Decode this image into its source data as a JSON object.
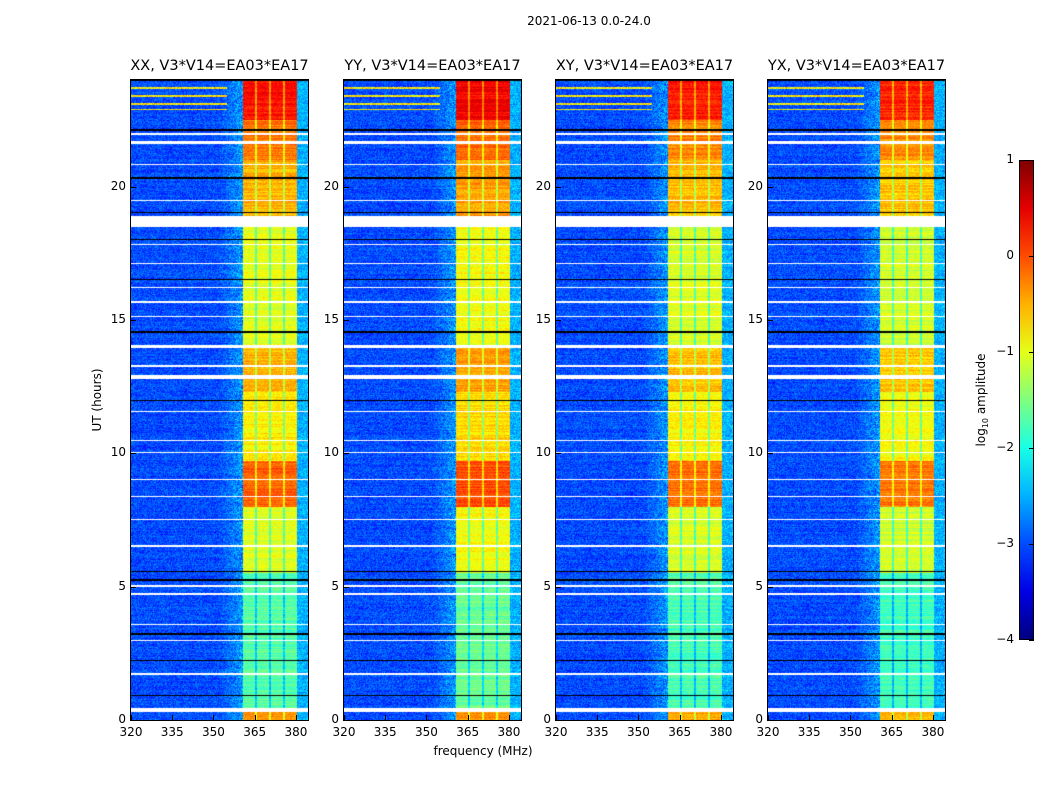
{
  "chart_data": {
    "type": "heatmap",
    "title": "2021-06-13 0.0-24.0",
    "xlabel": "frequency (MHz)",
    "ylabel": "UT (hours)",
    "xlim": [
      320,
      384.4
    ],
    "ylim": [
      0,
      24
    ],
    "xticks": [
      320,
      335,
      350,
      365,
      380
    ],
    "yticks": [
      0,
      5,
      10,
      15,
      20
    ],
    "colormap": "jet",
    "panels": [
      {
        "title": "XX, V3*V14=EA03*EA17",
        "level_offset": 0.0
      },
      {
        "title": "YY, V3*V14=EA03*EA17",
        "level_offset": 0.1
      },
      {
        "title": "XY, V3*V14=EA03*EA17",
        "level_offset": -0.05
      },
      {
        "title": "YX, V3*V14=EA03*EA17",
        "level_offset": -0.1
      }
    ],
    "colorbar": {
      "label_log": "log",
      "label_sub": "10",
      "label_rest": " amplitude",
      "range": [
        -4,
        1
      ],
      "ticks": [
        "1",
        "0",
        "−1",
        "−2",
        "−3",
        "−4"
      ]
    },
    "background_level": -3.0,
    "band_mhz": [
      360.7,
      380.4
    ],
    "subband_edges_mhz": [
      365.5,
      370.5,
      375.6
    ],
    "band_levels": [
      {
        "t": [
          0,
          0.45
        ],
        "level": -0.4
      },
      {
        "t": [
          0.45,
          5.5
        ],
        "level": -1.7
      },
      {
        "t": [
          5.5,
          8.0
        ],
        "level": -1.0
      },
      {
        "t": [
          8.0,
          9.7
        ],
        "level": -0.1
      },
      {
        "t": [
          9.7,
          12.3
        ],
        "level": -0.8
      },
      {
        "t": [
          12.3,
          14.0
        ],
        "level": -0.5
      },
      {
        "t": [
          14.0,
          18.5
        ],
        "level": -1.0
      },
      {
        "t": [
          18.9,
          21.0
        ],
        "level": -0.5
      },
      {
        "t": [
          21.0,
          22.5
        ],
        "level": -0.2
      },
      {
        "t": [
          22.5,
          24.0
        ],
        "level": 0.3
      }
    ],
    "flagged_hours": [
      [
        0.3,
        0.45
      ],
      [
        1.7,
        1.75
      ],
      [
        2.95,
        3.0
      ],
      [
        3.55,
        3.6
      ],
      [
        4.7,
        4.75
      ],
      [
        5.0,
        5.05
      ],
      [
        6.5,
        6.55
      ],
      [
        7.5,
        7.55
      ],
      [
        8.35,
        8.4
      ],
      [
        9.0,
        9.05
      ],
      [
        10.0,
        10.05
      ],
      [
        10.45,
        10.5
      ],
      [
        11.55,
        11.6
      ],
      [
        12.8,
        12.95
      ],
      [
        13.25,
        13.3
      ],
      [
        13.95,
        14.05
      ],
      [
        15.1,
        15.15
      ],
      [
        15.65,
        15.7
      ],
      [
        16.2,
        16.25
      ],
      [
        17.1,
        17.15
      ],
      [
        17.8,
        17.85
      ],
      [
        18.5,
        18.9
      ],
      [
        19.45,
        19.5
      ],
      [
        20.8,
        20.85
      ],
      [
        21.6,
        21.7
      ],
      [
        21.95,
        22.0
      ]
    ],
    "zero_hours": [
      [
        0.9,
        0.95
      ],
      [
        2.2,
        2.25
      ],
      [
        3.2,
        3.25
      ],
      [
        5.2,
        5.3
      ],
      [
        5.55,
        5.6
      ],
      [
        11.95,
        12.0
      ],
      [
        14.5,
        14.6
      ],
      [
        16.5,
        16.55
      ],
      [
        18.0,
        18.05
      ],
      [
        19.0,
        19.05
      ],
      [
        20.3,
        20.35
      ],
      [
        22.1,
        22.15
      ],
      [
        23.95,
        24.0
      ]
    ],
    "rfi_hours": [
      22.9,
      23.1,
      23.4,
      23.7
    ]
  }
}
